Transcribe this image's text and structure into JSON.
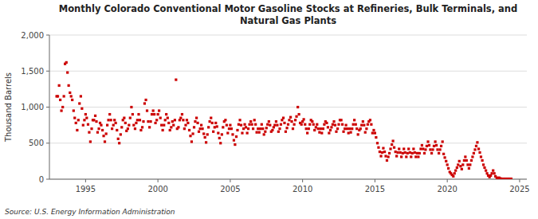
{
  "chart_data": {
    "type": "scatter",
    "title": "Monthly Colorado Conventional Motor Gasoline Stocks at Refineries, Bulk Terminals, and\nNatural Gas Plants",
    "ylabel": "Thousand Barrels",
    "annotations": [
      "Source: U.S. Energy Information Administration"
    ],
    "color": "#cc0000",
    "marker": "square",
    "grid": true,
    "xlim": [
      1992.5,
      2025.5
    ],
    "xticks": [
      1995,
      2000,
      2005,
      2010,
      2015,
      2020,
      2025
    ],
    "ylim": [
      0,
      2000
    ],
    "yticks": [
      0,
      500,
      {
        "value": 1000,
        "label": "1,000"
      },
      {
        "value": 1500,
        "label": "1,500"
      },
      {
        "value": 2000,
        "label": "2,000"
      }
    ],
    "x": [
      1993,
      1993.08,
      1993.17,
      1993.25,
      1993.33,
      1993.42,
      1993.5,
      1993.58,
      1993.67,
      1993.75,
      1993.83,
      1993.92,
      1994,
      1994.08,
      1994.17,
      1994.25,
      1994.33,
      1994.42,
      1994.5,
      1994.58,
      1994.67,
      1994.75,
      1994.83,
      1994.92,
      1995,
      1995.08,
      1995.17,
      1995.25,
      1995.33,
      1995.42,
      1995.5,
      1995.58,
      1995.67,
      1995.75,
      1995.83,
      1995.92,
      1996,
      1996.08,
      1996.17,
      1996.25,
      1996.33,
      1996.42,
      1996.5,
      1996.58,
      1996.67,
      1996.75,
      1996.83,
      1996.92,
      1997,
      1997.08,
      1997.17,
      1997.25,
      1997.33,
      1997.42,
      1997.5,
      1997.58,
      1997.67,
      1997.75,
      1997.83,
      1997.92,
      1998,
      1998.08,
      1998.17,
      1998.25,
      1998.33,
      1998.42,
      1998.5,
      1998.58,
      1998.67,
      1998.75,
      1998.83,
      1998.92,
      1999,
      1999.08,
      1999.17,
      1999.25,
      1999.33,
      1999.42,
      1999.5,
      1999.58,
      1999.67,
      1999.75,
      1999.83,
      1999.92,
      2000,
      2000.08,
      2000.17,
      2000.25,
      2000.33,
      2000.42,
      2000.5,
      2000.58,
      2000.67,
      2000.75,
      2000.83,
      2000.92,
      2001,
      2001.08,
      2001.17,
      2001.25,
      2001.33,
      2001.42,
      2001.5,
      2001.58,
      2001.67,
      2001.75,
      2001.83,
      2001.92,
      2002,
      2002.08,
      2002.17,
      2002.25,
      2002.33,
      2002.42,
      2002.5,
      2002.58,
      2002.67,
      2002.75,
      2002.83,
      2002.92,
      2003,
      2003.08,
      2003.17,
      2003.25,
      2003.33,
      2003.42,
      2003.5,
      2003.58,
      2003.67,
      2003.75,
      2003.83,
      2003.92,
      2004,
      2004.08,
      2004.17,
      2004.25,
      2004.33,
      2004.42,
      2004.5,
      2004.58,
      2004.67,
      2004.75,
      2004.83,
      2004.92,
      2005,
      2005.08,
      2005.17,
      2005.25,
      2005.33,
      2005.42,
      2005.5,
      2005.58,
      2005.67,
      2005.75,
      2005.83,
      2005.92,
      2006,
      2006.08,
      2006.17,
      2006.25,
      2006.33,
      2006.42,
      2006.5,
      2006.58,
      2006.67,
      2006.75,
      2006.83,
      2006.92,
      2007,
      2007.08,
      2007.17,
      2007.25,
      2007.33,
      2007.42,
      2007.5,
      2007.58,
      2007.67,
      2007.75,
      2007.83,
      2007.92,
      2008,
      2008.08,
      2008.17,
      2008.25,
      2008.33,
      2008.42,
      2008.5,
      2008.58,
      2008.67,
      2008.75,
      2008.83,
      2008.92,
      2009,
      2009.08,
      2009.17,
      2009.25,
      2009.33,
      2009.42,
      2009.5,
      2009.58,
      2009.67,
      2009.75,
      2009.83,
      2009.92,
      2010,
      2010.08,
      2010.17,
      2010.25,
      2010.33,
      2010.42,
      2010.5,
      2010.58,
      2010.67,
      2010.75,
      2010.83,
      2010.92,
      2011,
      2011.08,
      2011.17,
      2011.25,
      2011.33,
      2011.42,
      2011.5,
      2011.58,
      2011.67,
      2011.75,
      2011.83,
      2011.92,
      2012,
      2012.08,
      2012.17,
      2012.25,
      2012.33,
      2012.42,
      2012.5,
      2012.58,
      2012.67,
      2012.75,
      2012.83,
      2012.92,
      2013,
      2013.08,
      2013.17,
      2013.25,
      2013.33,
      2013.42,
      2013.5,
      2013.58,
      2013.67,
      2013.75,
      2013.83,
      2013.92,
      2014,
      2014.08,
      2014.17,
      2014.25,
      2014.33,
      2014.42,
      2014.5,
      2014.58,
      2014.67,
      2014.75,
      2014.83,
      2014.92,
      2015,
      2015.08,
      2015.17,
      2015.25,
      2015.33,
      2015.42,
      2015.5,
      2015.58,
      2015.67,
      2015.75,
      2015.83,
      2015.92,
      2016,
      2016.08,
      2016.17,
      2016.25,
      2016.33,
      2016.42,
      2016.5,
      2016.58,
      2016.67,
      2016.75,
      2016.83,
      2016.92,
      2017,
      2017.08,
      2017.17,
      2017.25,
      2017.33,
      2017.42,
      2017.5,
      2017.58,
      2017.67,
      2017.75,
      2017.83,
      2017.92,
      2018,
      2018.08,
      2018.17,
      2018.25,
      2018.33,
      2018.42,
      2018.5,
      2018.58,
      2018.67,
      2018.75,
      2018.83,
      2018.92,
      2019,
      2019.08,
      2019.17,
      2019.25,
      2019.33,
      2019.42,
      2019.5,
      2019.58,
      2019.67,
      2019.75,
      2019.83,
      2019.92,
      2020,
      2020.08,
      2020.17,
      2020.25,
      2020.33,
      2020.42,
      2020.5,
      2020.58,
      2020.67,
      2020.75,
      2020.83,
      2020.92,
      2021,
      2021.08,
      2021.17,
      2021.25,
      2021.33,
      2021.42,
      2021.5,
      2021.58,
      2021.67,
      2021.75,
      2021.83,
      2021.92,
      2022,
      2022.08,
      2022.17,
      2022.25,
      2022.33,
      2022.42,
      2022.5,
      2022.58,
      2022.67,
      2022.75,
      2022.83,
      2022.92,
      2023,
      2023.08,
      2023.17,
      2023.25,
      2023.33,
      2023.42,
      2023.5,
      2023.58,
      2023.67,
      2023.75,
      2023.83,
      2023.92,
      2024,
      2024.08,
      2024.17,
      2024.25,
      2024.33,
      2024.42
    ],
    "values": [
      1150,
      1150,
      1300,
      1100,
      950,
      1000,
      1150,
      1600,
      1620,
      1480,
      1300,
      1200,
      1150,
      1100,
      950,
      850,
      780,
      680,
      820,
      1050,
      1150,
      980,
      750,
      820,
      900,
      850,
      760,
      650,
      520,
      700,
      820,
      820,
      880,
      800,
      650,
      700,
      780,
      750,
      680,
      600,
      520,
      630,
      750,
      820,
      900,
      820,
      700,
      750,
      820,
      780,
      680,
      560,
      500,
      620,
      720,
      820,
      850,
      780,
      670,
      700,
      750,
      850,
      1000,
      900,
      750,
      700,
      780,
      820,
      900,
      820,
      680,
      720,
      800,
      1050,
      1100,
      950,
      800,
      720,
      800,
      900,
      950,
      900,
      780,
      820,
      900,
      950,
      850,
      750,
      680,
      750,
      820,
      900,
      850,
      780,
      680,
      720,
      800,
      750,
      820,
      1380,
      700,
      720,
      820,
      850,
      900,
      820,
      700,
      750,
      820,
      780,
      680,
      600,
      520,
      630,
      720,
      800,
      850,
      780,
      660,
      700,
      750,
      700,
      630,
      580,
      510,
      620,
      720,
      800,
      850,
      780,
      660,
      720,
      780,
      730,
      640,
      570,
      500,
      620,
      720,
      800,
      820,
      750,
      640,
      700,
      750,
      700,
      620,
      540,
      480,
      590,
      680,
      760,
      820,
      750,
      640,
      700,
      760,
      720,
      640,
      700,
      760,
      800,
      760,
      700,
      820,
      760,
      650,
      700,
      650,
      700,
      760,
      700,
      620,
      660,
      710,
      760,
      800,
      750,
      660,
      680,
      720,
      750,
      800,
      750,
      660,
      700,
      760,
      820,
      850,
      780,
      660,
      710,
      760,
      820,
      860,
      800,
      700,
      760,
      820,
      870,
      1000,
      900,
      780,
      760,
      800,
      830,
      760,
      700,
      640,
      700,
      760,
      820,
      800,
      760,
      680,
      720,
      760,
      700,
      650,
      700,
      640,
      700,
      760,
      800,
      780,
      720,
      640,
      680,
      720,
      760,
      800,
      750,
      660,
      700,
      760,
      820,
      820,
      760,
      660,
      700,
      750,
      700,
      640,
      700,
      650,
      700,
      760,
      820,
      760,
      700,
      620,
      680,
      700,
      750,
      800,
      750,
      650,
      700,
      760,
      800,
      820,
      760,
      640,
      680,
      640,
      580,
      500,
      440,
      380,
      320,
      370,
      430,
      380,
      320,
      260,
      310,
      360,
      420,
      480,
      530,
      440,
      380,
      320,
      370,
      420,
      370,
      310,
      360,
      420,
      370,
      310,
      360,
      420,
      370,
      310,
      360,
      420,
      370,
      310,
      360,
      310,
      360,
      420,
      470,
      420,
      360,
      410,
      460,
      520,
      470,
      410,
      360,
      410,
      460,
      520,
      470,
      410,
      360,
      410,
      460,
      520,
      350,
      300,
      250,
      200,
      150,
      100,
      80,
      60,
      40,
      80,
      120,
      160,
      200,
      250,
      180,
      140,
      200,
      260,
      310,
      260,
      200,
      150,
      200,
      260,
      310,
      360,
      410,
      460,
      510,
      420,
      370,
      310,
      260,
      200,
      160,
      120,
      80,
      50,
      30,
      50,
      80,
      120,
      80,
      40,
      20,
      10,
      20,
      10,
      5,
      5,
      5,
      5,
      5,
      5,
      5,
      5,
      5
    ]
  }
}
